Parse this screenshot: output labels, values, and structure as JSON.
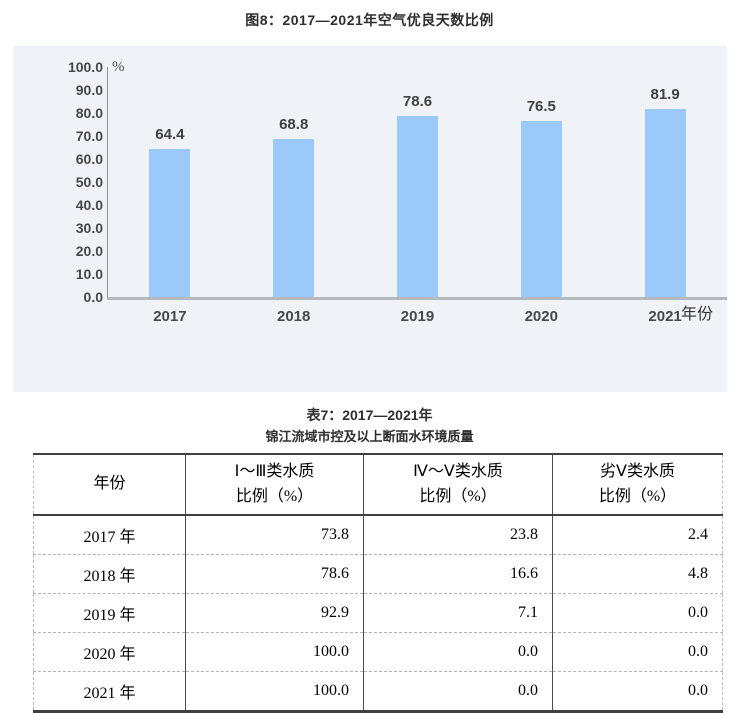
{
  "figure": {
    "title": "图8：2017—2021年空气优良天数比例",
    "unit_label": "%",
    "x_axis_title": "年份"
  },
  "chart_data": {
    "type": "bar",
    "title": "图8：2017—2021年空气优良天数比例",
    "categories": [
      "2017",
      "2018",
      "2019",
      "2020",
      "2021"
    ],
    "values": [
      64.4,
      68.8,
      78.6,
      76.5,
      81.9
    ],
    "xlabel": "年份",
    "ylabel": "%",
    "ylim": [
      0,
      100
    ],
    "ytick_step": 10,
    "ytick_format": "one_decimal",
    "grid": false,
    "legend": "none",
    "bar_color": "#9bcafa",
    "plot_background": "#eff3f8",
    "data_labels": [
      "64.4",
      "68.8",
      "78.6",
      "76.5",
      "81.9"
    ]
  },
  "table": {
    "title_line1": "表7：2017—2021年",
    "title_line2": "锦江流域市控及以上断面水环境质量",
    "columns": [
      {
        "lines": [
          "年份"
        ]
      },
      {
        "lines": [
          "Ⅰ～Ⅲ类水质",
          "比例（%）"
        ]
      },
      {
        "lines": [
          "Ⅳ～Ⅴ类水质",
          "比例（%）"
        ]
      },
      {
        "lines": [
          "劣Ⅴ类水质",
          "比例（%）"
        ]
      }
    ],
    "rows": [
      [
        "2017 年",
        "73.8",
        "23.8",
        "2.4"
      ],
      [
        "2018 年",
        "78.6",
        "16.6",
        "4.8"
      ],
      [
        "2019 年",
        "92.9",
        "7.1",
        "0.0"
      ],
      [
        "2020 年",
        "100.0",
        "0.0",
        "0.0"
      ],
      [
        "2021 年",
        "100.0",
        "0.0",
        "0.0"
      ]
    ]
  }
}
